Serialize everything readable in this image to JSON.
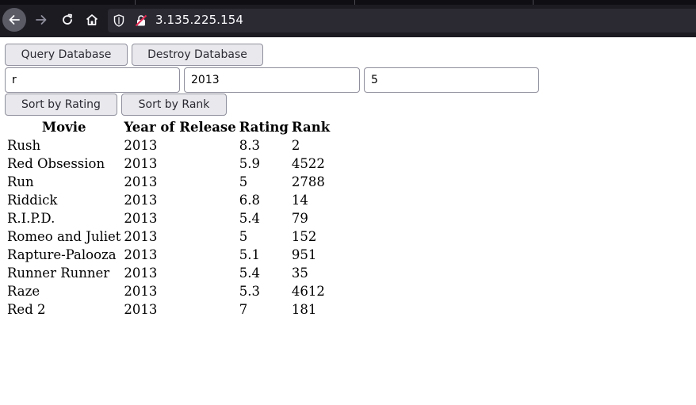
{
  "browser": {
    "url": "3.135.225.154"
  },
  "toolbar": {
    "query_label": "Query Database",
    "destroy_label": "Destroy Database",
    "sort_rating_label": "Sort by Rating",
    "sort_rank_label": "Sort by Rank"
  },
  "inputs": {
    "title": "r",
    "year": "2013",
    "limit": "5"
  },
  "table": {
    "headers": [
      "Movie",
      "Year of Release",
      "Rating",
      "Rank"
    ],
    "rows": [
      [
        "Rush",
        "2013",
        "8.3",
        "2"
      ],
      [
        "Red Obsession",
        "2013",
        "5.9",
        "4522"
      ],
      [
        "Run",
        "2013",
        "5",
        "2788"
      ],
      [
        "Riddick",
        "2013",
        "6.8",
        "14"
      ],
      [
        "R.I.P.D.",
        "2013",
        "5.4",
        "79"
      ],
      [
        "Romeo and Juliet",
        "2013",
        "5",
        "152"
      ],
      [
        "Rapture-Palooza",
        "2013",
        "5.1",
        "951"
      ],
      [
        "Runner Runner",
        "2013",
        "5.4",
        "35"
      ],
      [
        "Raze",
        "2013",
        "5.3",
        "4612"
      ],
      [
        "Red 2",
        "2013",
        "7",
        "181"
      ]
    ]
  }
}
